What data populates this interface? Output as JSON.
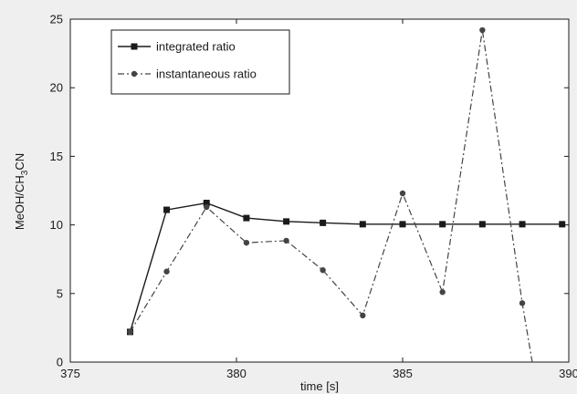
{
  "chart_data": {
    "type": "line",
    "xlabel": "time [s]",
    "ylabel": {
      "main": "MeOH/CH",
      "sub": "3",
      "tail": "CN"
    },
    "xlim": [
      375,
      390
    ],
    "ylim": [
      0,
      25
    ],
    "xticks": [
      375,
      380,
      385,
      390
    ],
    "yticks": [
      0,
      5,
      10,
      15,
      20,
      25
    ],
    "grid": false,
    "legend_position": "top-left",
    "series": [
      {
        "name": "integrated ratio",
        "line_style": "solid",
        "marker": "square",
        "color": "#1a1a1a",
        "x": [
          376.8,
          377.9,
          379.1,
          380.3,
          381.5,
          382.6,
          383.8,
          385.0,
          386.2,
          387.4,
          388.6,
          389.8
        ],
        "y": [
          2.2,
          11.1,
          11.6,
          10.5,
          10.25,
          10.15,
          10.05,
          10.05,
          10.05,
          10.05,
          10.05,
          10.05
        ]
      },
      {
        "name": "instantaneous ratio",
        "line_style": "dashdot",
        "marker": "circle",
        "color": "#444444",
        "x": [
          376.8,
          377.9,
          379.1,
          380.3,
          381.5,
          382.6,
          383.8,
          385.0,
          386.2,
          387.4,
          388.6,
          388.9
        ],
        "y": [
          2.2,
          6.6,
          11.3,
          8.7,
          8.85,
          6.7,
          3.4,
          12.3,
          5.1,
          24.2,
          4.3,
          0
        ]
      }
    ]
  }
}
